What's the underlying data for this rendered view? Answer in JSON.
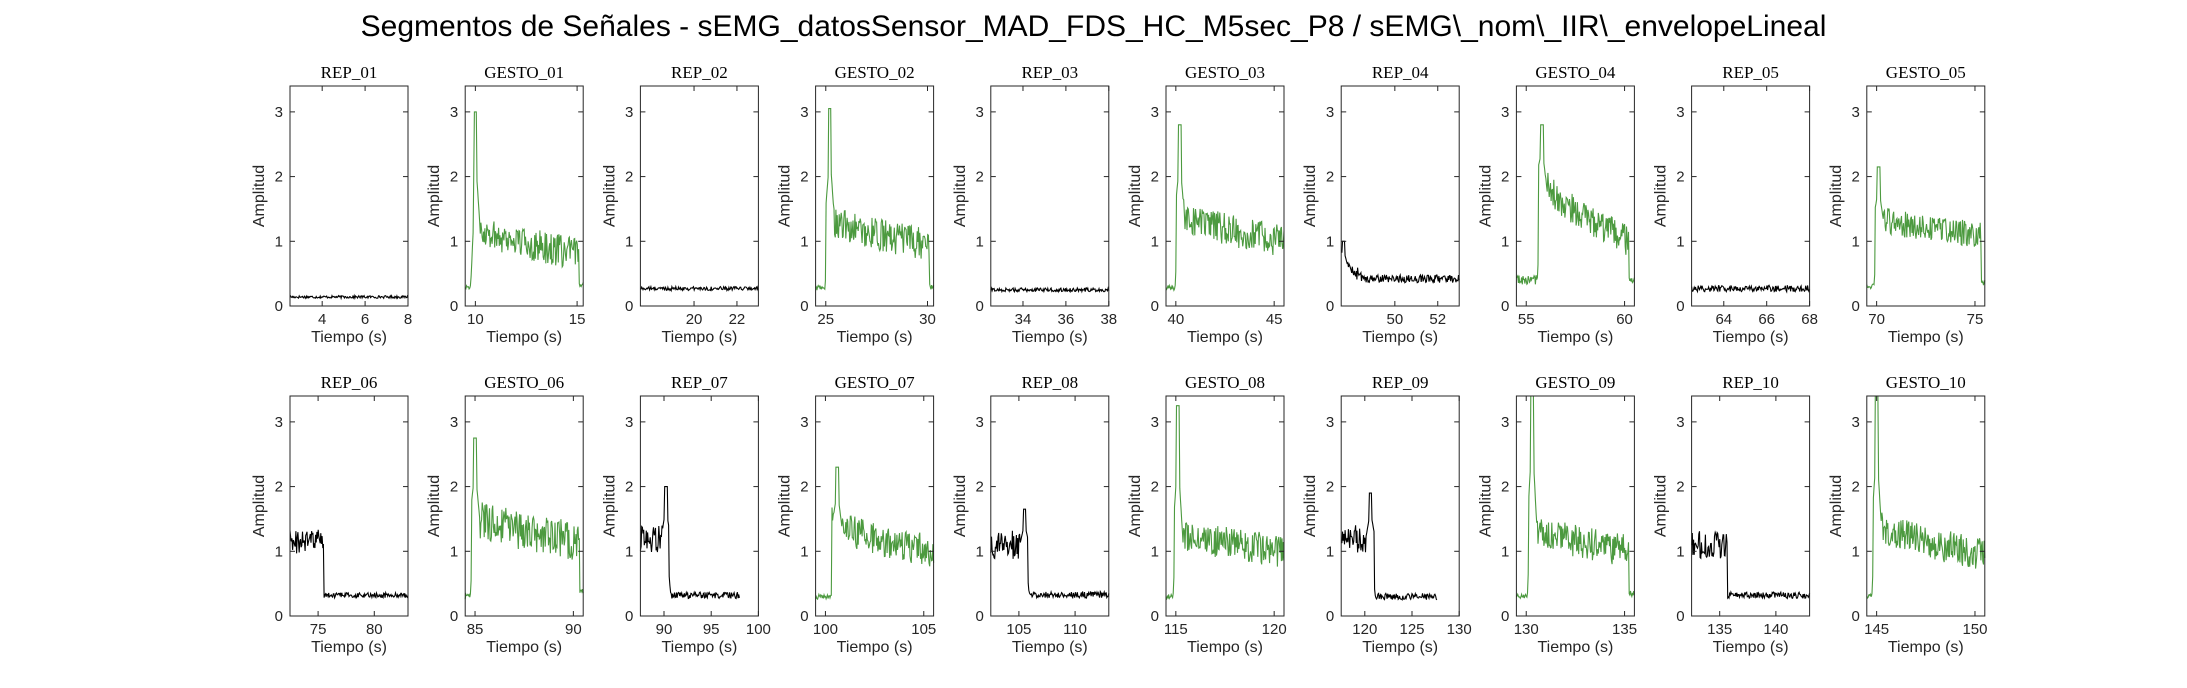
{
  "figure": {
    "title": "Segmentos de Señales - sEMG_datosSensor_MAD_FDS_HC_M5sec_P8 / sEMG\\_nom\\_IIR\\_envelopeLineal",
    "xlabel": "Tiempo (s)",
    "ylabel": "Amplitud",
    "rep_color": "#000000",
    "gesture_color": "#4c9a3f"
  },
  "chart_data": [
    {
      "type": "line",
      "title": "REP_01",
      "kind": "rep",
      "xlim": [
        2.5,
        8
      ],
      "ylim": [
        0,
        3.4
      ],
      "xticks": [
        4,
        6,
        8
      ],
      "yticks": [
        0,
        1,
        2,
        3
      ],
      "segments": [
        {
          "x0": 2.5,
          "x1": 8,
          "level": 0.14,
          "noise": 0.02
        }
      ],
      "spike": null
    },
    {
      "type": "line",
      "title": "GESTO_01",
      "kind": "gesture",
      "xlim": [
        9.5,
        15.3
      ],
      "ylim": [
        0,
        3.4
      ],
      "xticks": [
        10,
        15
      ],
      "yticks": [
        0,
        1,
        2,
        3
      ],
      "segments": [
        {
          "x0": 9.5,
          "x1": 9.9,
          "level": 0.3,
          "noise": 0.04
        },
        {
          "x0": 9.9,
          "x1": 15.1,
          "level": 1.3,
          "end": 0.8,
          "noise": 0.25
        },
        {
          "x0": 15.1,
          "x1": 15.3,
          "level": 0.35,
          "noise": 0.05
        }
      ],
      "spike": {
        "x": 10.0,
        "value": 3.0
      }
    },
    {
      "type": "line",
      "title": "REP_02",
      "kind": "rep",
      "xlim": [
        17.5,
        23
      ],
      "ylim": [
        0,
        3.4
      ],
      "xticks": [
        20,
        22
      ],
      "yticks": [
        0,
        1,
        2,
        3
      ],
      "segments": [
        {
          "x0": 17.5,
          "x1": 23,
          "level": 0.27,
          "noise": 0.03
        }
      ],
      "spike": null
    },
    {
      "type": "line",
      "title": "GESTO_02",
      "kind": "gesture",
      "xlim": [
        24.5,
        30.3
      ],
      "ylim": [
        0,
        3.4
      ],
      "xticks": [
        25,
        30
      ],
      "yticks": [
        0,
        1,
        2,
        3
      ],
      "segments": [
        {
          "x0": 24.5,
          "x1": 25.0,
          "level": 0.28,
          "noise": 0.04
        },
        {
          "x0": 25.0,
          "x1": 30.1,
          "level": 1.4,
          "end": 0.95,
          "noise": 0.25
        },
        {
          "x0": 30.1,
          "x1": 30.3,
          "level": 0.3,
          "noise": 0.05
        }
      ],
      "spike": {
        "x": 25.2,
        "value": 3.05
      }
    },
    {
      "type": "line",
      "title": "REP_03",
      "kind": "rep",
      "xlim": [
        32.5,
        38
      ],
      "ylim": [
        0,
        3.4
      ],
      "xticks": [
        34,
        36,
        38
      ],
      "yticks": [
        0,
        1,
        2,
        3
      ],
      "segments": [
        {
          "x0": 32.5,
          "x1": 38,
          "level": 0.25,
          "noise": 0.03
        }
      ],
      "spike": null
    },
    {
      "type": "line",
      "title": "GESTO_03",
      "kind": "gesture",
      "xlim": [
        39.5,
        45.5
      ],
      "ylim": [
        0,
        3.4
      ],
      "xticks": [
        40,
        45
      ],
      "yticks": [
        0,
        1,
        2,
        3
      ],
      "segments": [
        {
          "x0": 39.5,
          "x1": 40.0,
          "level": 0.28,
          "noise": 0.04
        },
        {
          "x0": 40.0,
          "x1": 45.5,
          "level": 1.5,
          "end": 1.0,
          "noise": 0.25
        }
      ],
      "spike": {
        "x": 40.2,
        "value": 2.8
      }
    },
    {
      "type": "line",
      "title": "REP_04",
      "kind": "rep",
      "xlim": [
        47.5,
        53
      ],
      "ylim": [
        0,
        3.4
      ],
      "xticks": [
        50,
        52
      ],
      "yticks": [
        0,
        1,
        2,
        3
      ],
      "segments": [
        {
          "x0": 47.5,
          "x1": 48.5,
          "level": 0.75,
          "end": 0.45,
          "noise": 0.1
        },
        {
          "x0": 48.5,
          "x1": 53,
          "level": 0.42,
          "noise": 0.06
        }
      ],
      "spike": {
        "x": 47.6,
        "value": 1.0
      }
    },
    {
      "type": "line",
      "title": "GESTO_04",
      "kind": "gesture",
      "xlim": [
        54.5,
        60.5
      ],
      "ylim": [
        0,
        3.4
      ],
      "xticks": [
        55,
        60
      ],
      "yticks": [
        0,
        1,
        2,
        3
      ],
      "segments": [
        {
          "x0": 54.5,
          "x1": 55.6,
          "level": 0.4,
          "noise": 0.08
        },
        {
          "x0": 55.6,
          "x1": 60.2,
          "level": 2.1,
          "end": 1.0,
          "noise": 0.25
        },
        {
          "x0": 60.2,
          "x1": 60.5,
          "level": 0.4,
          "noise": 0.05
        }
      ],
      "spike": {
        "x": 55.8,
        "value": 2.8
      }
    },
    {
      "type": "line",
      "title": "REP_05",
      "kind": "rep",
      "xlim": [
        62.5,
        68
      ],
      "ylim": [
        0,
        3.4
      ],
      "xticks": [
        64,
        66,
        68
      ],
      "yticks": [
        0,
        1,
        2,
        3
      ],
      "segments": [
        {
          "x0": 62.5,
          "x1": 68,
          "level": 0.27,
          "noise": 0.05
        }
      ],
      "spike": null
    },
    {
      "type": "line",
      "title": "GESTO_05",
      "kind": "gesture",
      "xlim": [
        69.5,
        75.5
      ],
      "ylim": [
        0,
        3.4
      ],
      "xticks": [
        70,
        75
      ],
      "yticks": [
        0,
        1,
        2,
        3
      ],
      "segments": [
        {
          "x0": 69.5,
          "x1": 69.9,
          "level": 0.3,
          "noise": 0.04
        },
        {
          "x0": 69.9,
          "x1": 75.3,
          "level": 1.4,
          "end": 1.1,
          "noise": 0.2
        },
        {
          "x0": 75.3,
          "x1": 75.5,
          "level": 0.35,
          "noise": 0.05
        }
      ],
      "spike": {
        "x": 70.1,
        "value": 2.15
      }
    },
    {
      "type": "line",
      "title": "REP_06",
      "kind": "rep",
      "xlim": [
        72.5,
        83
      ],
      "ylim": [
        0,
        3.4
      ],
      "xticks": [
        75,
        80
      ],
      "yticks": [
        0,
        1,
        2,
        3
      ],
      "segments": [
        {
          "x0": 72.5,
          "x1": 75.5,
          "level": 1.15,
          "noise": 0.2
        },
        {
          "x0": 75.5,
          "x1": 83,
          "level": 0.32,
          "noise": 0.04
        }
      ],
      "spike": null
    },
    {
      "type": "line",
      "title": "GESTO_06",
      "kind": "gesture",
      "xlim": [
        84.5,
        90.5
      ],
      "ylim": [
        0,
        3.4
      ],
      "xticks": [
        85,
        90
      ],
      "yticks": [
        0,
        1,
        2,
        3
      ],
      "segments": [
        {
          "x0": 84.5,
          "x1": 84.8,
          "level": 0.3,
          "noise": 0.04
        },
        {
          "x0": 84.8,
          "x1": 90.3,
          "level": 1.6,
          "end": 1.15,
          "noise": 0.3
        },
        {
          "x0": 90.3,
          "x1": 90.5,
          "level": 0.4,
          "noise": 0.05
        }
      ],
      "spike": {
        "x": 85.0,
        "value": 2.75
      }
    },
    {
      "type": "line",
      "title": "REP_07",
      "kind": "rep",
      "xlim": [
        87.5,
        100
      ],
      "ylim": [
        0,
        3.4
      ],
      "xticks": [
        90,
        95,
        100
      ],
      "yticks": [
        0,
        1,
        2,
        3
      ],
      "segments": [
        {
          "x0": 87.5,
          "x1": 90.5,
          "level": 1.2,
          "noise": 0.22
        },
        {
          "x0": 90.5,
          "x1": 98,
          "level": 0.32,
          "noise": 0.05
        }
      ],
      "spike": {
        "x": 90.2,
        "value": 2.0
      }
    },
    {
      "type": "line",
      "title": "GESTO_07",
      "kind": "gesture",
      "xlim": [
        99.5,
        105.5
      ],
      "ylim": [
        0,
        3.4
      ],
      "xticks": [
        100,
        105
      ],
      "yticks": [
        0,
        1,
        2,
        3
      ],
      "segments": [
        {
          "x0": 99.5,
          "x1": 100.3,
          "level": 0.3,
          "noise": 0.04
        },
        {
          "x0": 100.3,
          "x1": 105.5,
          "level": 1.5,
          "end": 1.0,
          "noise": 0.25
        }
      ],
      "spike": {
        "x": 100.6,
        "value": 2.3
      }
    },
    {
      "type": "line",
      "title": "REP_08",
      "kind": "rep",
      "xlim": [
        102.5,
        113
      ],
      "ylim": [
        0,
        3.4
      ],
      "xticks": [
        105,
        110
      ],
      "yticks": [
        0,
        1,
        2,
        3
      ],
      "segments": [
        {
          "x0": 102.5,
          "x1": 105.8,
          "level": 1.1,
          "noise": 0.22
        },
        {
          "x0": 105.8,
          "x1": 113,
          "level": 0.33,
          "noise": 0.05
        }
      ],
      "spike": {
        "x": 105.5,
        "value": 1.65
      }
    },
    {
      "type": "line",
      "title": "GESTO_08",
      "kind": "gesture",
      "xlim": [
        114.5,
        120.5
      ],
      "ylim": [
        0,
        3.4
      ],
      "xticks": [
        115,
        120
      ],
      "yticks": [
        0,
        1,
        2,
        3
      ],
      "segments": [
        {
          "x0": 114.5,
          "x1": 114.9,
          "level": 0.3,
          "noise": 0.04
        },
        {
          "x0": 114.9,
          "x1": 120.5,
          "level": 1.35,
          "end": 1.0,
          "noise": 0.25
        }
      ],
      "spike": {
        "x": 115.1,
        "value": 3.25
      }
    },
    {
      "type": "line",
      "title": "REP_09",
      "kind": "rep",
      "xlim": [
        117.5,
        130
      ],
      "ylim": [
        0,
        3.4
      ],
      "xticks": [
        120,
        125,
        130
      ],
      "yticks": [
        0,
        1,
        2,
        3
      ],
      "segments": [
        {
          "x0": 117.5,
          "x1": 121,
          "level": 1.2,
          "noise": 0.22
        },
        {
          "x0": 121,
          "x1": 127.7,
          "level": 0.3,
          "noise": 0.05
        }
      ],
      "spike": {
        "x": 120.6,
        "value": 1.9
      }
    },
    {
      "type": "line",
      "title": "GESTO_09",
      "kind": "gesture",
      "xlim": [
        129.5,
        135.5
      ],
      "ylim": [
        0,
        3.4
      ],
      "xticks": [
        130,
        135
      ],
      "yticks": [
        0,
        1,
        2,
        3
      ],
      "segments": [
        {
          "x0": 129.5,
          "x1": 130.1,
          "level": 0.3,
          "noise": 0.04
        },
        {
          "x0": 130.1,
          "x1": 135.2,
          "level": 1.45,
          "end": 1.0,
          "noise": 0.25
        },
        {
          "x0": 135.2,
          "x1": 135.5,
          "level": 0.35,
          "noise": 0.05
        }
      ],
      "spike": {
        "x": 130.3,
        "value": 3.75
      }
    },
    {
      "type": "line",
      "title": "REP_10",
      "kind": "rep",
      "xlim": [
        132.5,
        143
      ],
      "ylim": [
        0,
        3.4
      ],
      "xticks": [
        135,
        140
      ],
      "yticks": [
        0,
        1,
        2,
        3
      ],
      "segments": [
        {
          "x0": 132.5,
          "x1": 135.7,
          "level": 1.1,
          "noise": 0.22
        },
        {
          "x0": 135.7,
          "x1": 143,
          "level": 0.32,
          "noise": 0.05
        }
      ],
      "spike": null
    },
    {
      "type": "line",
      "title": "GESTO_10",
      "kind": "gesture",
      "xlim": [
        144.5,
        150.5
      ],
      "ylim": [
        0,
        3.4
      ],
      "xticks": [
        145,
        150
      ],
      "yticks": [
        0,
        1,
        2,
        3
      ],
      "segments": [
        {
          "x0": 144.5,
          "x1": 144.8,
          "level": 0.3,
          "noise": 0.04
        },
        {
          "x0": 144.8,
          "x1": 150.5,
          "level": 1.5,
          "end": 0.95,
          "noise": 0.25
        }
      ],
      "spike": {
        "x": 145.0,
        "value": 3.4
      }
    }
  ]
}
